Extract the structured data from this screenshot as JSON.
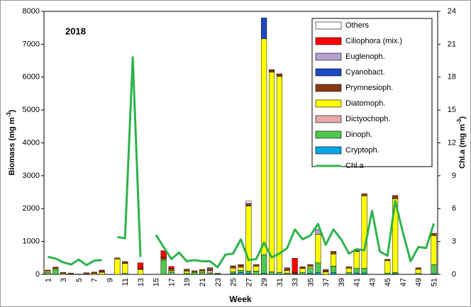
{
  "chart_data": {
    "type": "bar",
    "title": "2018",
    "xlabel": "Week",
    "ylabel": [
      "Biomass (mg m",
      "-3",
      ")"
    ],
    "y2label": [
      "Chl.a (mg m",
      "-3",
      ")"
    ],
    "categories": [
      1,
      null,
      3,
      null,
      5,
      null,
      7,
      null,
      9,
      null,
      11,
      null,
      13,
      null,
      15,
      null,
      17,
      null,
      19,
      null,
      21,
      null,
      23,
      null,
      25,
      null,
      27,
      null,
      29,
      null,
      31,
      null,
      33,
      null,
      35,
      null,
      37,
      null,
      39,
      null,
      41,
      null,
      43,
      null,
      45,
      null,
      47,
      null,
      49,
      null,
      51
    ],
    "ylim": [
      0,
      8000
    ],
    "yticks": [
      0,
      1000,
      2000,
      3000,
      4000,
      5000,
      6000,
      7000,
      8000
    ],
    "y2lim": [
      0,
      24
    ],
    "y2ticks": [
      0,
      3,
      6,
      9,
      12,
      15,
      18,
      21,
      24
    ],
    "grid": false,
    "stacked": true,
    "legend": "upper right",
    "series": [
      {
        "name": "Cryptoph.",
        "color": "#00a6e6",
        "values": [
          0,
          0,
          0,
          0,
          0,
          0,
          0,
          0,
          0,
          0,
          0,
          0,
          0,
          0,
          0,
          0,
          0,
          0,
          0,
          0,
          0,
          0,
          0,
          0,
          20,
          60,
          40,
          0,
          30,
          0,
          0,
          0,
          0,
          0,
          30,
          50,
          0,
          50,
          0,
          0,
          40,
          40,
          0,
          0,
          0,
          20,
          0,
          0,
          0,
          0,
          20
        ]
      },
      {
        "name": "Dinoph.",
        "color": "#4fc94f",
        "values": [
          60,
          150,
          0,
          0,
          0,
          0,
          0,
          0,
          0,
          0,
          30,
          0,
          0,
          0,
          0,
          430,
          80,
          0,
          40,
          50,
          60,
          40,
          20,
          0,
          60,
          60,
          60,
          100,
          570,
          80,
          60,
          40,
          20,
          60,
          170,
          300,
          0,
          200,
          0,
          60,
          140,
          150,
          0,
          0,
          40,
          40,
          0,
          0,
          30,
          0,
          280
        ]
      },
      {
        "name": "Dictyochoph.",
        "color": "#e5a9a9",
        "values": [
          0,
          0,
          0,
          0,
          0,
          0,
          0,
          0,
          0,
          0,
          0,
          0,
          0,
          0,
          0,
          0,
          0,
          0,
          0,
          0,
          0,
          80,
          0,
          0,
          0,
          0,
          0,
          0,
          0,
          0,
          0,
          0,
          0,
          0,
          0,
          0,
          0,
          0,
          0,
          0,
          0,
          0,
          0,
          0,
          0,
          0,
          0,
          0,
          0,
          0,
          0
        ]
      },
      {
        "name": "Diatomoph.",
        "color": "#ffff00",
        "values": [
          40,
          30,
          30,
          0,
          10,
          20,
          30,
          60,
          0,
          470,
          300,
          0,
          150,
          0,
          0,
          30,
          40,
          0,
          60,
          30,
          40,
          0,
          20,
          0,
          110,
          100,
          1980,
          150,
          6570,
          6070,
          5960,
          80,
          0,
          120,
          50,
          870,
          70,
          370,
          0,
          130,
          520,
          2200,
          0,
          0,
          380,
          2240,
          0,
          0,
          130,
          0,
          880
        ]
      },
      {
        "name": "Prymnesioph.",
        "color": "#8a3a12",
        "values": [
          30,
          40,
          30,
          40,
          0,
          30,
          40,
          40,
          0,
          30,
          60,
          0,
          30,
          0,
          0,
          60,
          60,
          0,
          60,
          30,
          50,
          60,
          0,
          0,
          70,
          80,
          80,
          50,
          0,
          80,
          80,
          80,
          30,
          50,
          50,
          0,
          80,
          80,
          0,
          40,
          50,
          60,
          0,
          0,
          40,
          100,
          0,
          0,
          40,
          0,
          70
        ]
      },
      {
        "name": "Cyanobact.",
        "color": "#1c49c4",
        "values": [
          0,
          0,
          0,
          0,
          0,
          0,
          0,
          0,
          0,
          0,
          0,
          0,
          0,
          0,
          0,
          0,
          0,
          0,
          0,
          0,
          0,
          0,
          0,
          0,
          0,
          0,
          0,
          0,
          630,
          0,
          0,
          0,
          0,
          0,
          0,
          0,
          0,
          0,
          0,
          0,
          0,
          0,
          0,
          0,
          0,
          0,
          0,
          0,
          0,
          0,
          0
        ]
      },
      {
        "name": "Euglenoph.",
        "color": "#b3a2d1",
        "values": [
          0,
          0,
          0,
          0,
          0,
          0,
          0,
          0,
          0,
          0,
          0,
          0,
          0,
          0,
          0,
          0,
          0,
          0,
          0,
          0,
          0,
          20,
          0,
          0,
          0,
          0,
          0,
          0,
          0,
          0,
          0,
          0,
          0,
          0,
          0,
          150,
          0,
          0,
          0,
          0,
          0,
          0,
          0,
          0,
          0,
          0,
          0,
          0,
          0,
          0,
          0
        ]
      },
      {
        "name": "Ciliophora (mix.)",
        "color": "#ff0000",
        "values": [
          0,
          0,
          0,
          0,
          0,
          0,
          0,
          30,
          0,
          0,
          0,
          0,
          170,
          0,
          0,
          200,
          60,
          0,
          0,
          0,
          0,
          0,
          0,
          0,
          0,
          0,
          0,
          0,
          0,
          0,
          0,
          0,
          440,
          0,
          0,
          0,
          0,
          0,
          0,
          0,
          0,
          0,
          0,
          0,
          0,
          0,
          0,
          0,
          0,
          0,
          0
        ]
      },
      {
        "name": "Others",
        "color": "#ffffff",
        "values": [
          0,
          0,
          0,
          0,
          0,
          0,
          0,
          0,
          0,
          0,
          0,
          0,
          0,
          0,
          0,
          0,
          0,
          0,
          0,
          0,
          0,
          0,
          0,
          0,
          0,
          0,
          70,
          0,
          0,
          0,
          0,
          0,
          0,
          0,
          0,
          0,
          0,
          0,
          0,
          0,
          0,
          0,
          0,
          0,
          0,
          0,
          0,
          0,
          0,
          0,
          0
        ]
      },
      {
        "name": "Chl.a",
        "color": "#2db34a",
        "type": "line",
        "axis": "y2",
        "values": [
          1.6,
          1.45,
          1.1,
          0.9,
          1.35,
          0.85,
          1.25,
          1.3,
          null,
          3.4,
          3.3,
          19.8,
          1.6,
          null,
          3.6,
          2.5,
          1.4,
          2.0,
          1.2,
          1.3,
          1.2,
          1.2,
          0.65,
          1.8,
          1.9,
          3.2,
          1.3,
          1.4,
          2.9,
          1.55,
          1.9,
          2.4,
          4.1,
          3.2,
          3.55,
          4.6,
          2.7,
          4.1,
          3.2,
          1.9,
          2.3,
          2.2,
          5.8,
          2.1,
          1.7,
          6.7,
          3.8,
          1.2,
          2.5,
          2.4,
          4.65
        ]
      }
    ]
  }
}
